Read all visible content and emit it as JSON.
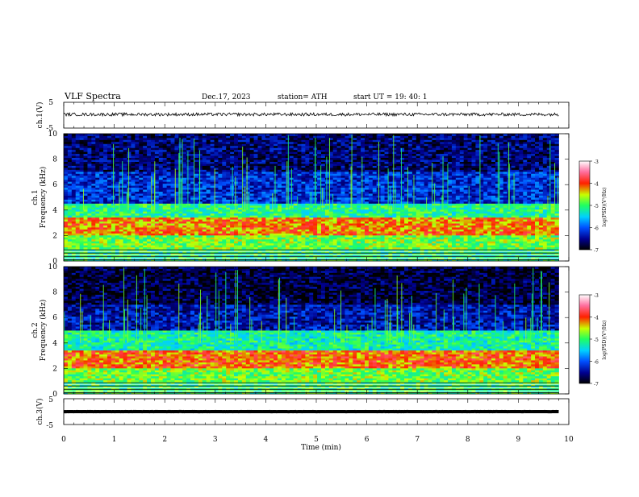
{
  "header": {
    "title": "VLF  Spectra",
    "date": "Dec.17, 2023",
    "station": "station= ATH",
    "start_ut": "start  UT  =    19: 40: 1"
  },
  "chart_data": {
    "type": "heatmap",
    "x_axis": {
      "label": "Time  (min)",
      "range": [
        0,
        10
      ],
      "ticks": [
        "0",
        "1",
        "2",
        "3",
        "4",
        "5",
        "6",
        "7",
        "8",
        "9",
        "10"
      ]
    },
    "data_end_min": 9.8,
    "panels": [
      {
        "kind": "waveform",
        "ylabel": "ch.1(V)",
        "ylim": [
          -5,
          5
        ],
        "yticks": [
          "5",
          "-5"
        ],
        "level": 0.3
      },
      {
        "kind": "spectrogram",
        "ylabel_channel": "ch.1",
        "ylabel": "Frequency  (kHz)",
        "ylim": [
          0,
          10
        ],
        "yticks": [
          "10",
          "8",
          "6",
          "4",
          "2",
          "0"
        ],
        "bands": [
          {
            "from_khz": 0,
            "to_khz": 1,
            "log_psd": -5.1
          },
          {
            "from_khz": 1,
            "to_khz": 2,
            "log_psd": -4.8
          },
          {
            "from_khz": 2,
            "to_khz": 3.5,
            "log_psd": -4.2
          },
          {
            "from_khz": 3.5,
            "to_khz": 4.5,
            "log_psd": -5.1
          },
          {
            "from_khz": 4.5,
            "to_khz": 7,
            "log_psd": -6.2
          },
          {
            "from_khz": 7,
            "to_khz": 10,
            "log_psd": -6.6
          }
        ],
        "colorbar": {
          "label": "log(PSD)(V²/Hz)",
          "range": [
            -7,
            -3
          ],
          "ticks": [
            "-3",
            "-4",
            "-5",
            "-6",
            "-7"
          ]
        }
      },
      {
        "kind": "spectrogram",
        "ylabel_channel": "ch.2",
        "ylabel": "Frequency  (kHz)",
        "ylim": [
          0,
          10
        ],
        "yticks": [
          "10",
          "8",
          "6",
          "4",
          "2",
          "0"
        ],
        "bands": [
          {
            "from_khz": 0,
            "to_khz": 1,
            "log_psd": -5.0
          },
          {
            "from_khz": 1,
            "to_khz": 2,
            "log_psd": -4.8
          },
          {
            "from_khz": 2,
            "to_khz": 3.5,
            "log_psd": -4.1
          },
          {
            "from_khz": 3.5,
            "to_khz": 5,
            "log_psd": -5.2
          },
          {
            "from_khz": 5,
            "to_khz": 7,
            "log_psd": -6.4
          },
          {
            "from_khz": 7,
            "to_khz": 10,
            "log_psd": -6.8
          }
        ],
        "colorbar": {
          "label": "log(PSD)(V²/Hz)",
          "range": [
            -7,
            -3
          ],
          "ticks": [
            "-3",
            "-4",
            "-5",
            "-6",
            "-7"
          ]
        }
      },
      {
        "kind": "waveform",
        "ylabel": "ch.3(V)",
        "ylim": [
          -5,
          5
        ],
        "yticks": [
          "5",
          "-5"
        ],
        "level": 0.0
      }
    ]
  }
}
